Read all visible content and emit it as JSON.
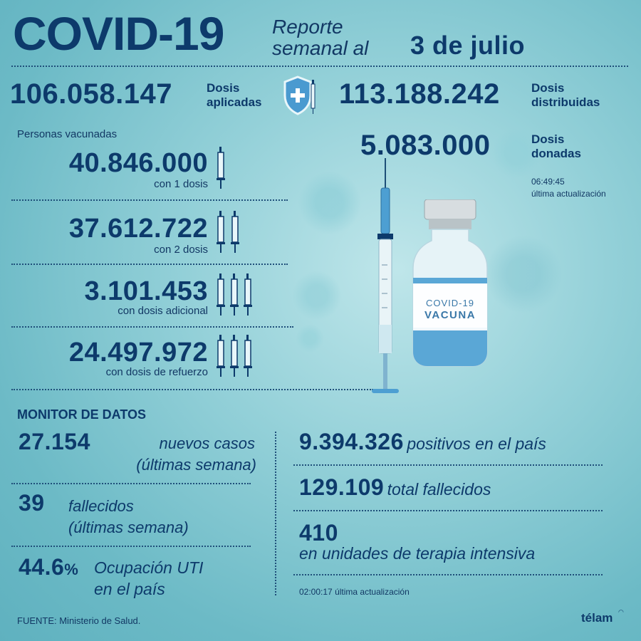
{
  "header": {
    "title": "COVID-19",
    "subtitle_line1": "Reporte",
    "subtitle_line2": "semanal al",
    "date": "3 de julio"
  },
  "doses": {
    "applied_value": "106.058.147",
    "applied_label1": "Dosis",
    "applied_label2": "aplicadas",
    "distributed_value": "113.188.242",
    "distributed_label1": "Dosis",
    "distributed_label2": "distribuidas",
    "donated_value": "5.083.000",
    "donated_label1": "Dosis",
    "donated_label2": "donadas",
    "update_time": "06:49:45",
    "update_label": "última actualización"
  },
  "vaccinated": {
    "heading": "Personas vacunadas",
    "rows": [
      {
        "value": "40.846.000",
        "label": "con 1 dosis",
        "syringes": 1
      },
      {
        "value": "37.612.722",
        "label": "con 2 dosis",
        "syringes": 2
      },
      {
        "value": "3.101.453",
        "label": "con dosis adicional",
        "syringes": 3
      },
      {
        "value": "24.497.972",
        "label": "con dosis de refuerzo",
        "syringes": 3
      }
    ]
  },
  "vial": {
    "line1": "COVID-19",
    "line2": "VACUNA"
  },
  "monitor": {
    "heading": "MONITOR DE DATOS",
    "new_cases_value": "27.154",
    "new_cases_label1": "nuevos casos",
    "new_cases_label2": "(últimas semana)",
    "deaths_value": "39",
    "deaths_label1": "fallecidos",
    "deaths_label2": "(últimas semana)",
    "icu_value": "44.6",
    "icu_unit": "%",
    "icu_label1": "Ocupación UTI",
    "icu_label2": "en el país",
    "positives_value": "9.394.326",
    "positives_label": "positivos en el país",
    "total_deaths_value": "129.109",
    "total_deaths_label": "total fallecidos",
    "icu_patients_value": "410",
    "icu_patients_label": "en unidades de terapia intensiva",
    "update_time": "02:00:17",
    "update_label": "última actualización"
  },
  "footer": {
    "source": "FUENTE: Ministerio de Salud.",
    "brand": "télam"
  },
  "colors": {
    "navy": "#0d3a6b",
    "background": "#93d0d8",
    "syringe_blue": "#3f8fc4"
  }
}
